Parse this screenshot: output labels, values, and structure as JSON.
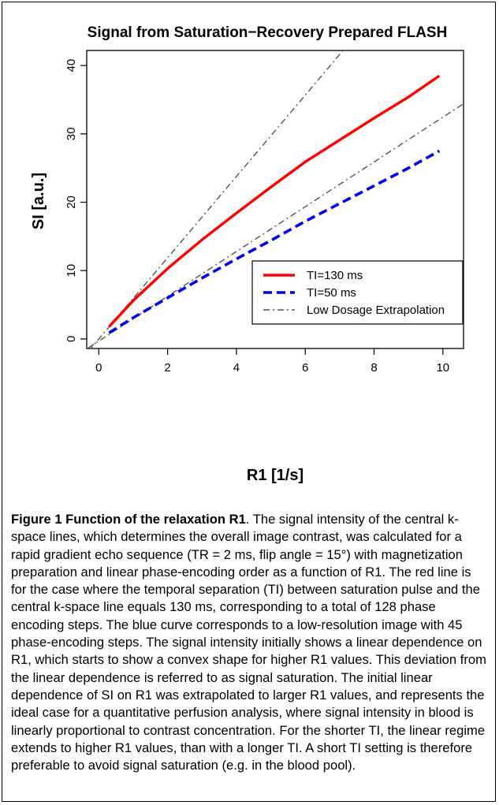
{
  "chart_data": {
    "type": "line",
    "title": "Signal from Saturation−Recovery Prepared FLASH",
    "xlabel": "R1 [1/s]",
    "ylabel": "SI [a.u.]",
    "xlim": [
      -0.35,
      10.6
    ],
    "ylim": [
      -1.4,
      42.2
    ],
    "xticks": [
      "0",
      "2",
      "4",
      "6",
      "8",
      "10"
    ],
    "yticks": [
      "0",
      "10",
      "20",
      "30",
      "40"
    ],
    "grid": false,
    "legend_position": "bottom-right",
    "series": [
      {
        "name": "TI=130 ms",
        "style": "solid",
        "color": "#ff0000",
        "points": [
          [
            0.3,
            1.8
          ],
          [
            1.0,
            5.6
          ],
          [
            2.0,
            10.3
          ],
          [
            3.0,
            14.5
          ],
          [
            4.0,
            18.4
          ],
          [
            5.0,
            22.2
          ],
          [
            6.0,
            25.9
          ],
          [
            7.0,
            29.1
          ],
          [
            8.0,
            32.3
          ],
          [
            9.0,
            35.4
          ],
          [
            9.9,
            38.5
          ]
        ]
      },
      {
        "name": "TI=50 ms",
        "style": "dashed",
        "color": "#0000ee",
        "points": [
          [
            0.3,
            0.9
          ],
          [
            1.0,
            3.1
          ],
          [
            2.0,
            6.0
          ],
          [
            3.0,
            8.9
          ],
          [
            4.0,
            11.7
          ],
          [
            5.0,
            14.4
          ],
          [
            6.0,
            17.2
          ],
          [
            7.0,
            19.8
          ],
          [
            8.0,
            22.4
          ],
          [
            9.0,
            25.0
          ],
          [
            9.9,
            27.5
          ]
        ]
      },
      {
        "name": "Low Dosage Extrapolation",
        "style": "dashdot",
        "color": "#555555",
        "points": [
          [
            -0.3,
            -1.8
          ],
          [
            7.1,
            42.2
          ]
        ]
      },
      {
        "name": "",
        "style": "dashdot",
        "color": "#555555",
        "points": [
          [
            -0.3,
            -1.3
          ],
          [
            10.6,
            34.4
          ]
        ]
      }
    ]
  },
  "caption": {
    "heading": "Figure 1 Function of the relaxation R1",
    "body": ". The signal intensity of the central k-space lines, which determines the overall image contrast, was calculated for a rapid gradient echo sequence (TR = 2 ms, flip angle = 15°) with magnetization preparation and linear phase-encoding order as a function of R1. The red line is for the case where the temporal separation (TI) between saturation pulse and the central k-space line equals 130 ms, corresponding to a total of 128 phase encoding steps. The blue curve corresponds to a low-resolution image with 45 phase-encoding steps. The signal intensity initially shows a linear dependence on R1, which starts to show a convex shape for higher R1 values. This deviation from the linear dependence is referred to as signal saturation. The initial linear dependence of SI on R1 was extrapolated to larger R1 values, and represents the ideal case for a quantitative perfusion analysis, where signal intensity in blood is linearly proportional to contrast concentration. For the shorter TI, the linear regime extends to higher R1 values, than with a longer TI. A short TI setting is therefore preferable to avoid signal saturation (e.g. in the blood pool)."
  }
}
